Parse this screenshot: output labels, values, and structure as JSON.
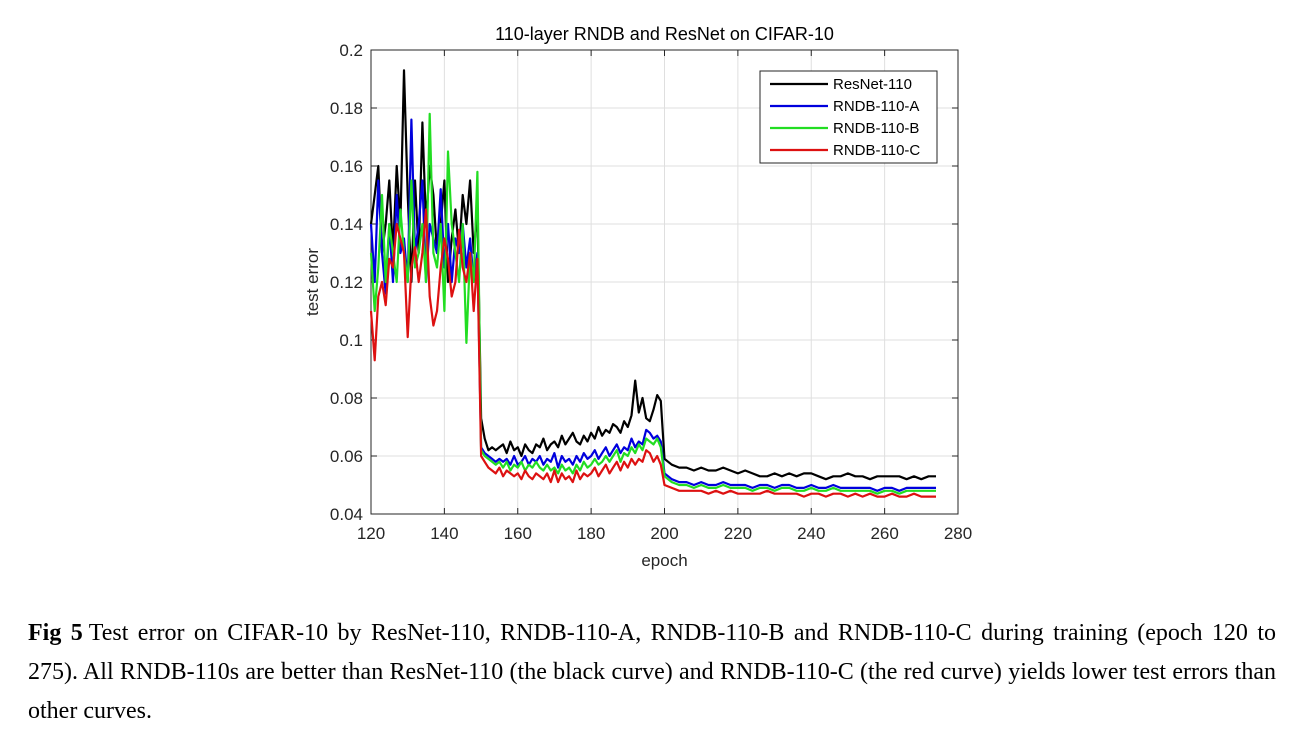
{
  "chart_data": {
    "type": "line",
    "title": "110-layer RNDB and ResNet on CIFAR-10",
    "xlabel": "epoch",
    "ylabel": "test error",
    "xlim": [
      120,
      280
    ],
    "ylim": [
      0.04,
      0.2
    ],
    "xticks": [
      "120",
      "140",
      "160",
      "180",
      "200",
      "220",
      "240",
      "260",
      "280"
    ],
    "yticks": [
      "0.04",
      "0.06",
      "0.08",
      "0.1",
      "0.12",
      "0.14",
      "0.16",
      "0.18",
      "0.2"
    ],
    "grid": true,
    "legend_position": "top-right",
    "series": [
      {
        "name": "ResNet-110",
        "color": "#000000",
        "x": [
          120,
          121,
          122,
          123,
          124,
          125,
          126,
          127,
          128,
          129,
          130,
          131,
          132,
          133,
          134,
          135,
          136,
          137,
          138,
          139,
          140,
          141,
          142,
          143,
          144,
          145,
          146,
          147,
          148,
          149,
          150,
          151,
          152,
          153,
          154,
          155,
          156,
          157,
          158,
          159,
          160,
          161,
          162,
          163,
          164,
          165,
          166,
          167,
          168,
          169,
          170,
          171,
          172,
          173,
          174,
          175,
          176,
          177,
          178,
          179,
          180,
          181,
          182,
          183,
          184,
          185,
          186,
          187,
          188,
          189,
          190,
          191,
          192,
          193,
          194,
          195,
          196,
          197,
          198,
          199,
          200,
          202,
          204,
          206,
          208,
          210,
          212,
          214,
          216,
          218,
          220,
          222,
          224,
          226,
          228,
          230,
          232,
          234,
          236,
          238,
          240,
          242,
          244,
          246,
          248,
          250,
          252,
          254,
          256,
          258,
          260,
          262,
          264,
          266,
          268,
          270,
          272,
          274
        ],
        "values": [
          0.14,
          0.15,
          0.16,
          0.13,
          0.14,
          0.155,
          0.13,
          0.16,
          0.14,
          0.193,
          0.15,
          0.12,
          0.155,
          0.13,
          0.175,
          0.14,
          0.16,
          0.15,
          0.13,
          0.14,
          0.155,
          0.12,
          0.135,
          0.145,
          0.13,
          0.15,
          0.14,
          0.155,
          0.13,
          0.145,
          0.073,
          0.066,
          0.062,
          0.063,
          0.062,
          0.063,
          0.064,
          0.061,
          0.065,
          0.062,
          0.063,
          0.06,
          0.064,
          0.062,
          0.061,
          0.064,
          0.063,
          0.066,
          0.062,
          0.064,
          0.065,
          0.063,
          0.067,
          0.064,
          0.066,
          0.068,
          0.065,
          0.064,
          0.067,
          0.065,
          0.068,
          0.066,
          0.07,
          0.067,
          0.069,
          0.068,
          0.071,
          0.07,
          0.068,
          0.072,
          0.07,
          0.074,
          0.086,
          0.075,
          0.08,
          0.073,
          0.072,
          0.076,
          0.081,
          0.079,
          0.059,
          0.057,
          0.056,
          0.056,
          0.055,
          0.056,
          0.055,
          0.055,
          0.056,
          0.055,
          0.054,
          0.055,
          0.054,
          0.053,
          0.053,
          0.054,
          0.053,
          0.054,
          0.053,
          0.054,
          0.054,
          0.053,
          0.052,
          0.053,
          0.053,
          0.054,
          0.053,
          0.053,
          0.052,
          0.053,
          0.053,
          0.053,
          0.053,
          0.052,
          0.053,
          0.052,
          0.053,
          0.053
        ]
      },
      {
        "name": "RNDB-110-A",
        "color": "#0000dd",
        "x": [
          120,
          121,
          122,
          123,
          124,
          125,
          126,
          127,
          128,
          129,
          130,
          131,
          132,
          133,
          134,
          135,
          136,
          137,
          138,
          139,
          140,
          141,
          142,
          143,
          144,
          145,
          146,
          147,
          148,
          149,
          150,
          151,
          152,
          153,
          154,
          155,
          156,
          157,
          158,
          159,
          160,
          161,
          162,
          163,
          164,
          165,
          166,
          167,
          168,
          169,
          170,
          171,
          172,
          173,
          174,
          175,
          176,
          177,
          178,
          179,
          180,
          181,
          182,
          183,
          184,
          185,
          186,
          187,
          188,
          189,
          190,
          191,
          192,
          193,
          194,
          195,
          196,
          197,
          198,
          199,
          200,
          202,
          204,
          206,
          208,
          210,
          212,
          214,
          216,
          218,
          220,
          222,
          224,
          226,
          228,
          230,
          232,
          234,
          236,
          238,
          240,
          242,
          244,
          246,
          248,
          250,
          252,
          254,
          256,
          258,
          260,
          262,
          264,
          266,
          268,
          270,
          272,
          274
        ],
        "values": [
          0.14,
          0.12,
          0.155,
          0.13,
          0.116,
          0.14,
          0.12,
          0.15,
          0.13,
          0.135,
          0.12,
          0.176,
          0.13,
          0.14,
          0.155,
          0.12,
          0.14,
          0.135,
          0.13,
          0.152,
          0.125,
          0.14,
          0.12,
          0.135,
          0.13,
          0.14,
          0.125,
          0.135,
          0.12,
          0.13,
          0.063,
          0.061,
          0.06,
          0.059,
          0.058,
          0.059,
          0.058,
          0.059,
          0.057,
          0.06,
          0.057,
          0.058,
          0.06,
          0.057,
          0.059,
          0.058,
          0.06,
          0.057,
          0.059,
          0.058,
          0.061,
          0.056,
          0.06,
          0.058,
          0.059,
          0.057,
          0.06,
          0.058,
          0.061,
          0.059,
          0.06,
          0.062,
          0.059,
          0.061,
          0.063,
          0.06,
          0.062,
          0.064,
          0.061,
          0.063,
          0.062,
          0.066,
          0.063,
          0.065,
          0.064,
          0.069,
          0.068,
          0.066,
          0.067,
          0.065,
          0.054,
          0.052,
          0.051,
          0.051,
          0.05,
          0.051,
          0.05,
          0.05,
          0.051,
          0.05,
          0.05,
          0.05,
          0.049,
          0.05,
          0.05,
          0.049,
          0.05,
          0.05,
          0.049,
          0.049,
          0.05,
          0.049,
          0.049,
          0.05,
          0.049,
          0.049,
          0.049,
          0.049,
          0.049,
          0.048,
          0.049,
          0.049,
          0.048,
          0.049,
          0.049,
          0.049,
          0.049,
          0.049
        ]
      },
      {
        "name": "RNDB-110-B",
        "color": "#22dd22",
        "x": [
          120,
          121,
          122,
          123,
          124,
          125,
          126,
          127,
          128,
          129,
          130,
          131,
          132,
          133,
          134,
          135,
          136,
          137,
          138,
          139,
          140,
          141,
          142,
          143,
          144,
          145,
          146,
          147,
          148,
          149,
          150,
          151,
          152,
          153,
          154,
          155,
          156,
          157,
          158,
          159,
          160,
          161,
          162,
          163,
          164,
          165,
          166,
          167,
          168,
          169,
          170,
          171,
          172,
          173,
          174,
          175,
          176,
          177,
          178,
          179,
          180,
          181,
          182,
          183,
          184,
          185,
          186,
          187,
          188,
          189,
          190,
          191,
          192,
          193,
          194,
          195,
          196,
          197,
          198,
          199,
          200,
          202,
          204,
          206,
          208,
          210,
          212,
          214,
          216,
          218,
          220,
          222,
          224,
          226,
          228,
          230,
          232,
          234,
          236,
          238,
          240,
          242,
          244,
          246,
          248,
          250,
          252,
          254,
          256,
          258,
          260,
          262,
          264,
          266,
          268,
          270,
          272,
          274
        ],
        "values": [
          0.13,
          0.11,
          0.125,
          0.15,
          0.12,
          0.14,
          0.13,
          0.12,
          0.145,
          0.13,
          0.12,
          0.155,
          0.125,
          0.13,
          0.14,
          0.12,
          0.178,
          0.13,
          0.125,
          0.14,
          0.11,
          0.165,
          0.14,
          0.13,
          0.12,
          0.14,
          0.099,
          0.13,
          0.12,
          0.158,
          0.062,
          0.06,
          0.059,
          0.058,
          0.057,
          0.058,
          0.056,
          0.058,
          0.055,
          0.057,
          0.056,
          0.058,
          0.055,
          0.057,
          0.056,
          0.058,
          0.056,
          0.055,
          0.057,
          0.055,
          0.056,
          0.054,
          0.057,
          0.055,
          0.056,
          0.054,
          0.057,
          0.055,
          0.058,
          0.056,
          0.057,
          0.059,
          0.057,
          0.058,
          0.06,
          0.058,
          0.06,
          0.062,
          0.058,
          0.061,
          0.06,
          0.063,
          0.061,
          0.064,
          0.062,
          0.066,
          0.065,
          0.064,
          0.066,
          0.063,
          0.053,
          0.051,
          0.05,
          0.05,
          0.049,
          0.05,
          0.049,
          0.049,
          0.05,
          0.049,
          0.049,
          0.049,
          0.048,
          0.049,
          0.049,
          0.048,
          0.049,
          0.049,
          0.048,
          0.048,
          0.049,
          0.048,
          0.048,
          0.049,
          0.048,
          0.048,
          0.048,
          0.048,
          0.048,
          0.047,
          0.048,
          0.048,
          0.047,
          0.048,
          0.048,
          0.048,
          0.048,
          0.048
        ]
      },
      {
        "name": "RNDB-110-C",
        "color": "#dd1111",
        "x": [
          120,
          121,
          122,
          123,
          124,
          125,
          126,
          127,
          128,
          129,
          130,
          131,
          132,
          133,
          134,
          135,
          136,
          137,
          138,
          139,
          140,
          141,
          142,
          143,
          144,
          145,
          146,
          147,
          148,
          149,
          150,
          151,
          152,
          153,
          154,
          155,
          156,
          157,
          158,
          159,
          160,
          161,
          162,
          163,
          164,
          165,
          166,
          167,
          168,
          169,
          170,
          171,
          172,
          173,
          174,
          175,
          176,
          177,
          178,
          179,
          180,
          181,
          182,
          183,
          184,
          185,
          186,
          187,
          188,
          189,
          190,
          191,
          192,
          193,
          194,
          195,
          196,
          197,
          198,
          199,
          200,
          202,
          204,
          206,
          208,
          210,
          212,
          214,
          216,
          218,
          220,
          222,
          224,
          226,
          228,
          230,
          232,
          234,
          236,
          238,
          240,
          242,
          244,
          246,
          248,
          250,
          252,
          254,
          256,
          258,
          260,
          262,
          264,
          266,
          268,
          270,
          272,
          274
        ],
        "values": [
          0.11,
          0.093,
          0.115,
          0.12,
          0.112,
          0.128,
          0.125,
          0.14,
          0.135,
          0.13,
          0.101,
          0.125,
          0.132,
          0.12,
          0.13,
          0.145,
          0.115,
          0.105,
          0.11,
          0.125,
          0.135,
          0.128,
          0.115,
          0.12,
          0.138,
          0.125,
          0.12,
          0.13,
          0.11,
          0.128,
          0.06,
          0.058,
          0.056,
          0.055,
          0.054,
          0.056,
          0.053,
          0.055,
          0.054,
          0.053,
          0.054,
          0.052,
          0.055,
          0.053,
          0.052,
          0.054,
          0.053,
          0.052,
          0.054,
          0.051,
          0.055,
          0.051,
          0.054,
          0.052,
          0.053,
          0.051,
          0.055,
          0.052,
          0.054,
          0.053,
          0.054,
          0.056,
          0.053,
          0.055,
          0.057,
          0.054,
          0.056,
          0.058,
          0.055,
          0.058,
          0.056,
          0.059,
          0.057,
          0.059,
          0.058,
          0.062,
          0.061,
          0.058,
          0.06,
          0.057,
          0.05,
          0.049,
          0.048,
          0.048,
          0.048,
          0.048,
          0.047,
          0.048,
          0.047,
          0.048,
          0.047,
          0.047,
          0.047,
          0.047,
          0.048,
          0.047,
          0.047,
          0.047,
          0.047,
          0.046,
          0.047,
          0.047,
          0.046,
          0.047,
          0.047,
          0.046,
          0.047,
          0.046,
          0.047,
          0.046,
          0.046,
          0.047,
          0.046,
          0.046,
          0.047,
          0.046,
          0.046,
          0.046
        ]
      }
    ]
  },
  "caption": {
    "label": "Fig 5",
    "text": "Test error on CIFAR-10 by ResNet-110, RNDB-110-A, RNDB-110-B and RNDB-110-C during training (epoch 120 to 275). All RNDB-110s are better than ResNet-110 (the black curve) and RNDB-110-C (the red curve) yields lower test errors than other curves."
  }
}
